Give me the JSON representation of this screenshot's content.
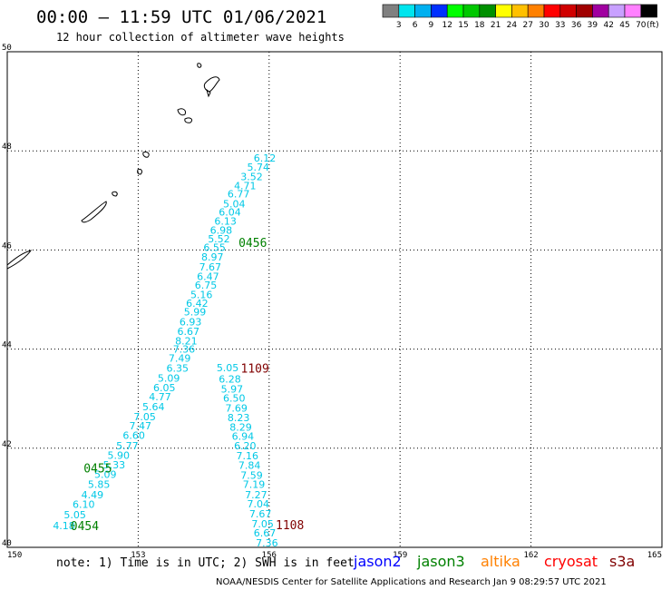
{
  "chart_data": {
    "type": "scatter",
    "title": "00:00 — 11:59 UTC 01/06/2021",
    "subtitle": "12 hour collection of altimeter wave heights",
    "xlim": [
      150,
      165
    ],
    "ylim": [
      40,
      50
    ],
    "x_ticks": [
      "150",
      "153",
      "156",
      "159",
      "162",
      "165"
    ],
    "y_ticks": [
      "40",
      "42",
      "44",
      "46",
      "48",
      "50"
    ],
    "grid": true,
    "legend": {
      "placement": "top-right",
      "unit": "(ft)",
      "colors": [
        "#808080",
        "#00e5ee",
        "#00b0f0",
        "#0030ff",
        "#00ff00",
        "#00c800",
        "#009000",
        "#ffff00",
        "#ffc000",
        "#ff8000",
        "#ff0000",
        "#d00000",
        "#a00000",
        "#a000a0",
        "#c8a0ff",
        "#ff80ff",
        "#000000"
      ],
      "labels": [
        "3",
        "6",
        "9",
        "12",
        "15",
        "18",
        "21",
        "24",
        "27",
        "30",
        "33",
        "36",
        "39",
        "42",
        "45",
        "70"
      ]
    },
    "series": [
      {
        "color": "#00c8e6",
        "points": [
          {
            "x": 151.3,
            "y": 40.44,
            "v": "4.18"
          },
          {
            "x": 151.55,
            "y": 40.66,
            "v": "5.05"
          },
          {
            "x": 151.75,
            "y": 40.87,
            "v": "6.10"
          },
          {
            "x": 151.95,
            "y": 41.06,
            "v": "4.49"
          },
          {
            "x": 152.1,
            "y": 41.27,
            "v": "5.85"
          },
          {
            "x": 152.25,
            "y": 41.47,
            "v": "5.09"
          },
          {
            "x": 152.45,
            "y": 41.67,
            "v": "5.33"
          },
          {
            "x": 152.55,
            "y": 41.86,
            "v": "5.90"
          },
          {
            "x": 152.75,
            "y": 42.05,
            "v": "5.77"
          },
          {
            "x": 152.9,
            "y": 42.26,
            "v": "6.60"
          },
          {
            "x": 153.05,
            "y": 42.45,
            "v": "7.47"
          },
          {
            "x": 153.15,
            "y": 42.64,
            "v": "7.05"
          },
          {
            "x": 153.35,
            "y": 42.84,
            "v": "5.64"
          },
          {
            "x": 153.5,
            "y": 43.04,
            "v": "4.77"
          },
          {
            "x": 153.6,
            "y": 43.22,
            "v": "6.05"
          },
          {
            "x": 153.7,
            "y": 43.42,
            "v": "5.09"
          },
          {
            "x": 153.9,
            "y": 43.62,
            "v": "6.35"
          },
          {
            "x": 153.95,
            "y": 43.82,
            "v": "7.49"
          },
          {
            "x": 154.05,
            "y": 44.0,
            "v": "7.36"
          },
          {
            "x": 154.1,
            "y": 44.17,
            "v": "8.21"
          },
          {
            "x": 154.15,
            "y": 44.36,
            "v": "6.67"
          },
          {
            "x": 154.2,
            "y": 44.55,
            "v": "6.93"
          },
          {
            "x": 154.3,
            "y": 44.75,
            "v": "5.99"
          },
          {
            "x": 154.35,
            "y": 44.93,
            "v": "6.42"
          },
          {
            "x": 154.45,
            "y": 45.1,
            "v": "5.16"
          },
          {
            "x": 154.55,
            "y": 45.29,
            "v": "6.75"
          },
          {
            "x": 154.6,
            "y": 45.47,
            "v": "6.47"
          },
          {
            "x": 154.65,
            "y": 45.66,
            "v": "7.67"
          },
          {
            "x": 154.7,
            "y": 45.86,
            "v": "8.97"
          },
          {
            "x": 154.75,
            "y": 46.05,
            "v": "6.55"
          },
          {
            "x": 154.85,
            "y": 46.23,
            "v": "5.52"
          },
          {
            "x": 154.9,
            "y": 46.4,
            "v": "6.98"
          },
          {
            "x": 155.0,
            "y": 46.58,
            "v": "6.13"
          },
          {
            "x": 155.1,
            "y": 46.77,
            "v": "6.04"
          },
          {
            "x": 155.2,
            "y": 46.93,
            "v": "5.04"
          },
          {
            "x": 155.3,
            "y": 47.13,
            "v": "6.77"
          },
          {
            "x": 155.45,
            "y": 47.3,
            "v": "4.71"
          },
          {
            "x": 155.6,
            "y": 47.48,
            "v": "3.52"
          },
          {
            "x": 155.75,
            "y": 47.67,
            "v": "5.74"
          },
          {
            "x": 155.9,
            "y": 47.86,
            "v": "6.12"
          },
          {
            "x": 155.05,
            "y": 43.63,
            "v": "5.05"
          },
          {
            "x": 155.1,
            "y": 43.4,
            "v": "6.28"
          },
          {
            "x": 155.15,
            "y": 43.2,
            "v": "5.97"
          },
          {
            "x": 155.2,
            "y": 43.01,
            "v": "6.50"
          },
          {
            "x": 155.25,
            "y": 42.81,
            "v": "7.69"
          },
          {
            "x": 155.3,
            "y": 42.62,
            "v": "8.23"
          },
          {
            "x": 155.35,
            "y": 42.43,
            "v": "8.29"
          },
          {
            "x": 155.4,
            "y": 42.24,
            "v": "6.94"
          },
          {
            "x": 155.45,
            "y": 42.05,
            "v": "6.20"
          },
          {
            "x": 155.5,
            "y": 41.85,
            "v": "7.16"
          },
          {
            "x": 155.55,
            "y": 41.66,
            "v": "7.84"
          },
          {
            "x": 155.6,
            "y": 41.46,
            "v": "7.59"
          },
          {
            "x": 155.65,
            "y": 41.27,
            "v": "7.19"
          },
          {
            "x": 155.7,
            "y": 41.06,
            "v": "7.27"
          },
          {
            "x": 155.75,
            "y": 40.88,
            "v": "7.04"
          },
          {
            "x": 155.8,
            "y": 40.68,
            "v": "7.67"
          },
          {
            "x": 155.85,
            "y": 40.48,
            "v": "7.05"
          },
          {
            "x": 155.9,
            "y": 40.29,
            "v": "6.67"
          },
          {
            "x": 155.95,
            "y": 40.09,
            "v": "7.36"
          }
        ]
      }
    ],
    "pass_labels": [
      {
        "x": 155.3,
        "y": 46.15,
        "text": "0456",
        "color": "#008000"
      },
      {
        "x": 155.35,
        "y": 43.62,
        "text": "1109",
        "color": "#800000"
      },
      {
        "x": 151.75,
        "y": 41.6,
        "text": "0455",
        "color": "#008000"
      },
      {
        "x": 151.45,
        "y": 40.44,
        "text": "0454",
        "color": "#008000"
      },
      {
        "x": 156.15,
        "y": 40.46,
        "text": "1108",
        "color": "#800000"
      }
    ]
  },
  "note": "note: 1) Time is in UTC; 2) SWH is in feet",
  "satellites": [
    {
      "name": "jason2",
      "color": "#0000ff"
    },
    {
      "name": "jason3",
      "color": "#008000"
    },
    {
      "name": "altika",
      "color": "#ff8000"
    },
    {
      "name": "cryosat",
      "color": "#ff0000"
    },
    {
      "name": "s3a",
      "color": "#800000"
    }
  ],
  "footer": "NOAA/NESDIS Center for Satellite Applications and Research   Jan  9 08:29:57 UTC 2021"
}
